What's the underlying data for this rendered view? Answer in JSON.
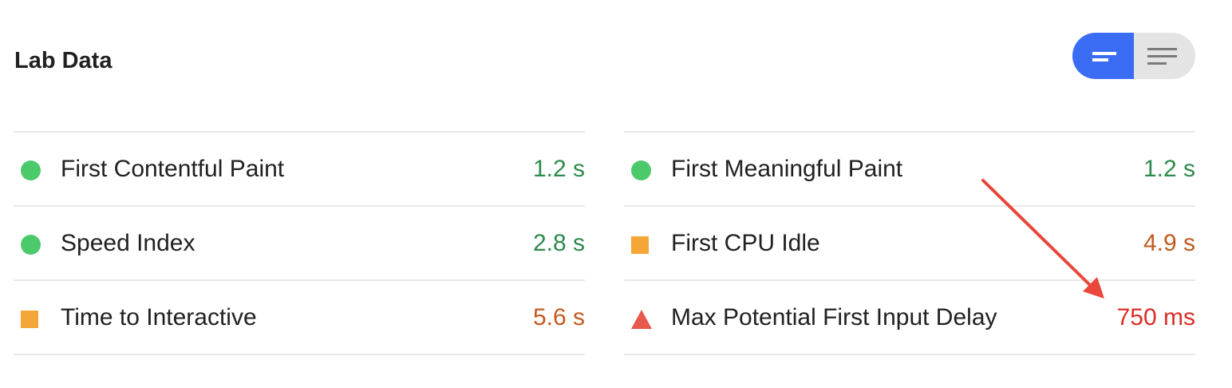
{
  "header": {
    "title": "Lab Data"
  },
  "view_toggle": {
    "options": [
      {
        "name": "compact",
        "icon": "short-lines-icon",
        "active": true
      },
      {
        "name": "expanded",
        "icon": "long-lines-icon",
        "active": false
      }
    ],
    "active_color": "#3a6cf4",
    "inactive_color": "#e4e4e4"
  },
  "metrics": {
    "left": [
      {
        "label": "First Contentful Paint",
        "value": "1.2 s",
        "status": "pass"
      },
      {
        "label": "Speed Index",
        "value": "2.8 s",
        "status": "pass"
      },
      {
        "label": "Time to Interactive",
        "value": "5.6 s",
        "status": "average"
      }
    ],
    "right": [
      {
        "label": "First Meaningful Paint",
        "value": "1.2 s",
        "status": "pass"
      },
      {
        "label": "First CPU Idle",
        "value": "4.9 s",
        "status": "average"
      },
      {
        "label": "Max Potential First Input Delay",
        "value": "750 ms",
        "status": "fail"
      }
    ]
  },
  "status_colors": {
    "pass": "#4cc96b",
    "average": "#f4a637",
    "fail": "#e8584d"
  },
  "annotation": {
    "type": "arrow",
    "color": "#e8473a",
    "points_to": "Max Potential First Input Delay value"
  }
}
